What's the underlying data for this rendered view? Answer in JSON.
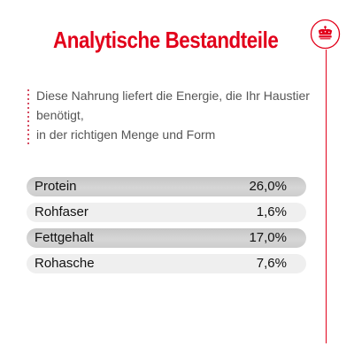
{
  "header": {
    "title": "Analytische Bestandteile"
  },
  "badge": {
    "icon": "crown-icon",
    "color": "#e2001a"
  },
  "intro": {
    "lines": [
      "Diese Nahrung liefert die Energie, die Ihr Haustier",
      "benötigt,",
      "in der richtigen Menge und Form"
    ]
  },
  "table": {
    "rows": [
      {
        "label": "Protein",
        "value": "26,0%"
      },
      {
        "label": "Rohfaser",
        "value": "1,6%"
      },
      {
        "label": "Fettgehalt",
        "value": "17,0%"
      },
      {
        "label": "Rohasche",
        "value": "7,6%"
      }
    ]
  },
  "colors": {
    "accent": "#e2001a",
    "row_dark": "#cfcfcf",
    "row_light": "#efefef",
    "text": "#111111",
    "intro_text": "#555555"
  }
}
